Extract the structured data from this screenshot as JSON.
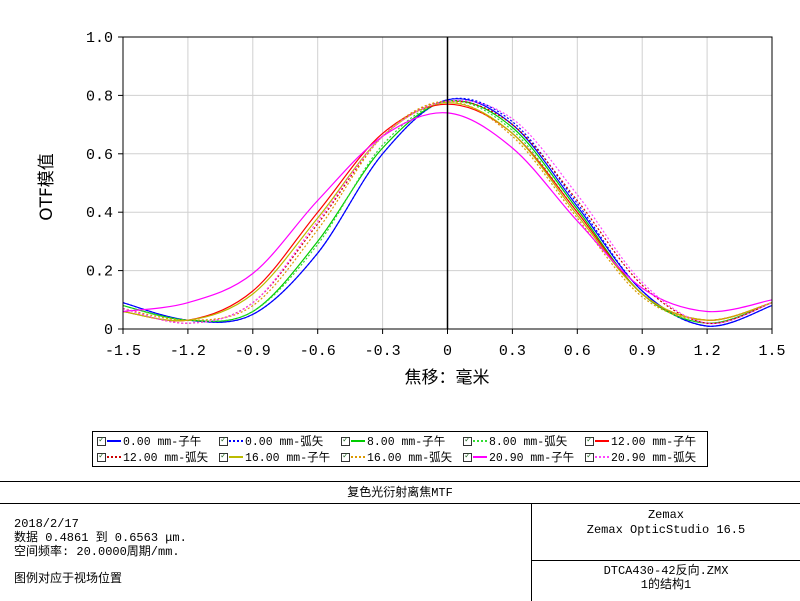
{
  "chart_data": {
    "type": "line",
    "title": "",
    "xlabel": "焦移：毫米",
    "ylabel": "OTF模值",
    "xlim": [
      -1.5,
      1.5
    ],
    "ylim": [
      0,
      1.0
    ],
    "xticks": [
      "-1.5",
      "-1.2",
      "-0.9",
      "-0.6",
      "-0.3",
      "0",
      "0.3",
      "0.6",
      "0.9",
      "1.2",
      "1.5"
    ],
    "yticks": [
      "0",
      "0.2",
      "0.4",
      "0.6",
      "0.8",
      "1.0"
    ],
    "grid": true,
    "legend_position": "bottom",
    "series": [
      {
        "name": "0.00 mm-子午",
        "color": "#0000ff",
        "dash": "solid",
        "x": [
          -1.5,
          -1.2,
          -0.9,
          -0.6,
          -0.3,
          0,
          0.3,
          0.6,
          0.9,
          1.2,
          1.5
        ],
        "y": [
          0.09,
          0.03,
          0.05,
          0.26,
          0.6,
          0.785,
          0.7,
          0.42,
          0.13,
          0.01,
          0.08
        ]
      },
      {
        "name": "0.00 mm-弧矢",
        "color": "#0000ff",
        "dash": "dotted",
        "x": [
          -1.5,
          -1.2,
          -0.9,
          -0.6,
          -0.3,
          0,
          0.3,
          0.6,
          0.9,
          1.2,
          1.5
        ],
        "y": [
          0.09,
          0.03,
          0.05,
          0.26,
          0.6,
          0.785,
          0.71,
          0.43,
          0.13,
          0.01,
          0.08
        ]
      },
      {
        "name": "8.00 mm-子午",
        "color": "#00cc00",
        "dash": "solid",
        "x": [
          -1.5,
          -1.2,
          -0.9,
          -0.6,
          -0.3,
          0,
          0.3,
          0.6,
          0.9,
          1.2,
          1.5
        ],
        "y": [
          0.08,
          0.03,
          0.06,
          0.3,
          0.62,
          0.78,
          0.69,
          0.41,
          0.12,
          0.02,
          0.09
        ]
      },
      {
        "name": "8.00 mm-弧矢",
        "color": "#33dd33",
        "dash": "dotted",
        "x": [
          -1.5,
          -1.2,
          -0.9,
          -0.6,
          -0.3,
          0,
          0.3,
          0.6,
          0.9,
          1.2,
          1.5
        ],
        "y": [
          0.08,
          0.03,
          0.06,
          0.29,
          0.63,
          0.78,
          0.68,
          0.4,
          0.12,
          0.02,
          0.09
        ]
      },
      {
        "name": "12.00 mm-子午",
        "color": "#ff0000",
        "dash": "solid",
        "x": [
          -1.5,
          -1.2,
          -0.9,
          -0.6,
          -0.3,
          0,
          0.3,
          0.6,
          0.9,
          1.2,
          1.5
        ],
        "y": [
          0.06,
          0.03,
          0.13,
          0.4,
          0.67,
          0.77,
          0.67,
          0.4,
          0.12,
          0.03,
          0.09
        ]
      },
      {
        "name": "12.00 mm-弧矢",
        "color": "#cc0000",
        "dash": "dotted",
        "x": [
          -1.5,
          -1.2,
          -0.9,
          -0.6,
          -0.3,
          0,
          0.3,
          0.6,
          0.9,
          1.2,
          1.5
        ],
        "y": [
          0.07,
          0.02,
          0.09,
          0.36,
          0.66,
          0.78,
          0.7,
          0.44,
          0.15,
          0.02,
          0.09
        ]
      },
      {
        "name": "16.00 mm-子午",
        "color": "#bbbb00",
        "dash": "solid",
        "x": [
          -1.5,
          -1.2,
          -0.9,
          -0.6,
          -0.3,
          0,
          0.3,
          0.6,
          0.9,
          1.2,
          1.5
        ],
        "y": [
          0.06,
          0.03,
          0.12,
          0.38,
          0.66,
          0.775,
          0.67,
          0.39,
          0.12,
          0.03,
          0.09
        ]
      },
      {
        "name": "16.00 mm-弧矢",
        "color": "#dd9900",
        "dash": "dotted",
        "x": [
          -1.5,
          -1.2,
          -0.9,
          -0.6,
          -0.3,
          0,
          0.3,
          0.6,
          0.9,
          1.2,
          1.5
        ],
        "y": [
          0.07,
          0.03,
          0.08,
          0.34,
          0.66,
          0.78,
          0.66,
          0.38,
          0.11,
          0.03,
          0.09
        ]
      },
      {
        "name": "20.90 mm-子午",
        "color": "#ff00ff",
        "dash": "solid",
        "x": [
          -1.5,
          -1.2,
          -0.9,
          -0.6,
          -0.3,
          0,
          0.3,
          0.6,
          0.9,
          1.2,
          1.5
        ],
        "y": [
          0.06,
          0.09,
          0.19,
          0.44,
          0.66,
          0.74,
          0.62,
          0.37,
          0.14,
          0.06,
          0.1
        ]
      },
      {
        "name": "20.90 mm-弧矢",
        "color": "#ff44ff",
        "dash": "dotted",
        "x": [
          -1.5,
          -1.2,
          -0.9,
          -0.6,
          -0.3,
          0,
          0.3,
          0.6,
          0.9,
          1.2,
          1.5
        ],
        "y": [
          0.07,
          0.02,
          0.09,
          0.37,
          0.66,
          0.78,
          0.72,
          0.46,
          0.16,
          0.02,
          0.09
        ]
      }
    ]
  },
  "legend": {
    "check_glyph": "✓"
  },
  "footer": {
    "title": "复色光衍射离焦MTF",
    "date": "2018/2/17",
    "data_line": "数据 0.4861 到 0.6563 μm.",
    "freq_line": "空间频率: 20.0000周期/mm.",
    "note": "图例对应于视场位置",
    "company": "Zemax",
    "product": "Zemax OpticStudio 16.5",
    "file": "DTCA430-42反向.ZMX",
    "config": "1的结构1"
  }
}
